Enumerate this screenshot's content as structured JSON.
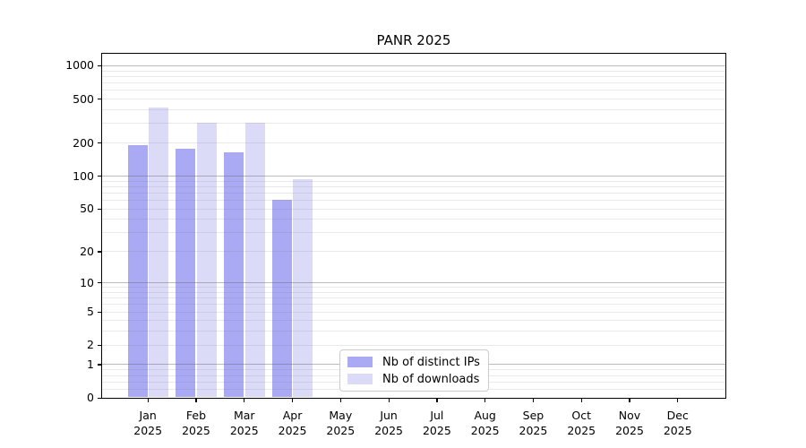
{
  "chart_data": {
    "type": "bar",
    "title": "PANR 2025",
    "categories": [
      "Jan",
      "Feb",
      "Mar",
      "Apr",
      "May",
      "Jun",
      "Jul",
      "Aug",
      "Sep",
      "Oct",
      "Nov",
      "Dec"
    ],
    "x_year": "2025",
    "series": [
      {
        "name": "Nb of distinct IPs",
        "color": "#a9a9f4",
        "values": [
          191,
          178,
          165,
          61,
          0,
          0,
          0,
          0,
          0,
          0,
          0,
          0
        ]
      },
      {
        "name": "Nb of downloads",
        "color": "#dbdbf8",
        "values": [
          421,
          306,
          306,
          94,
          0,
          0,
          0,
          0,
          0,
          0,
          0,
          0
        ]
      }
    ],
    "yscale": "log1p",
    "ylim": [
      0,
      1280
    ],
    "yticks": [
      0,
      1,
      2,
      5,
      10,
      20,
      50,
      100,
      200,
      500,
      1000
    ],
    "major_gridlines": [
      1,
      10,
      100,
      1000
    ],
    "minor_gridlines": [
      0.2,
      0.4,
      0.6,
      0.8,
      2,
      3,
      4,
      5,
      6,
      7,
      8,
      9,
      20,
      30,
      40,
      50,
      60,
      70,
      80,
      90,
      200,
      300,
      400,
      500,
      600,
      700,
      800,
      900
    ],
    "grid": true,
    "legend_position": "bottom-center",
    "colors": {
      "axis": "#000000",
      "major_grid": "#b3b3b3",
      "minor_grid": "#eaeaea",
      "background": "#ffffff",
      "text": "#000000"
    }
  }
}
